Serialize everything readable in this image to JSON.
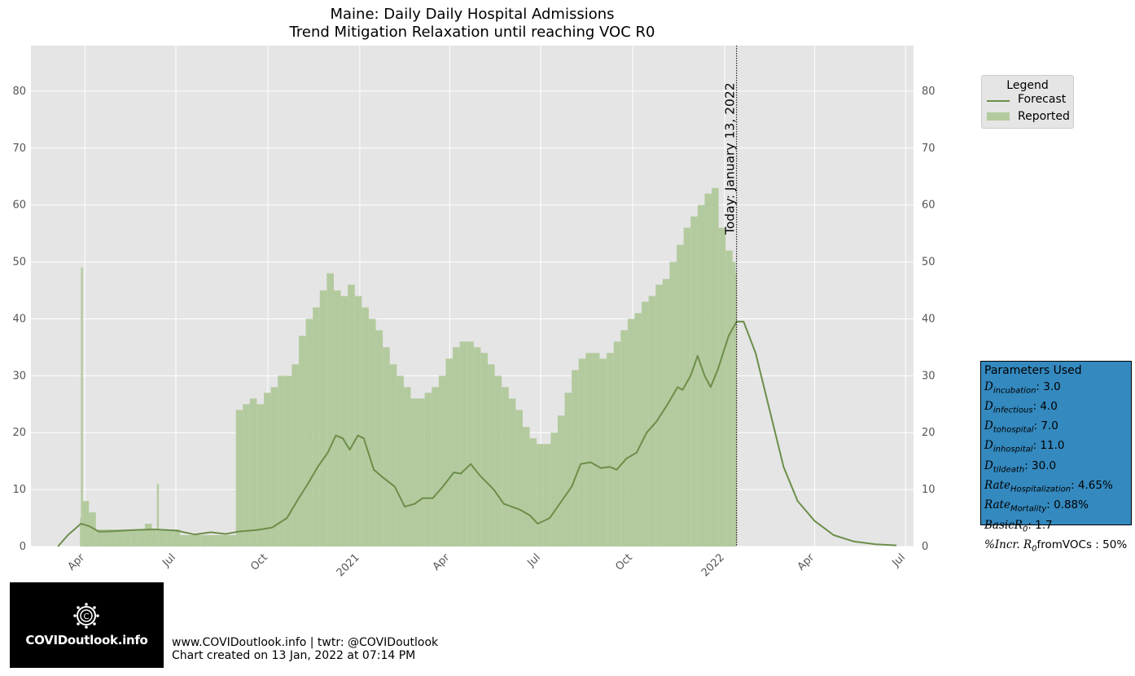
{
  "chart_data": {
    "type": "bar",
    "title": "Maine: Daily Daily Hospital Admissions",
    "subtitle": "Trend Mitigation Relaxation until reaching VOC R0",
    "xlabel": "",
    "ylabel": "",
    "ylim": [
      0,
      88
    ],
    "yticks": [
      0,
      10,
      20,
      30,
      40,
      50,
      60,
      70,
      80
    ],
    "grid": true,
    "legend_position": "outside-right",
    "x_ticks": [
      {
        "label": "Apr",
        "date": "2020-04-01"
      },
      {
        "label": "Jul",
        "date": "2020-07-01"
      },
      {
        "label": "Oct",
        "date": "2020-10-01"
      },
      {
        "label": "2021",
        "date": "2021-01-01"
      },
      {
        "label": "Apr",
        "date": "2021-04-01"
      },
      {
        "label": "Jul",
        "date": "2021-07-01"
      },
      {
        "label": "Oct",
        "date": "2021-10-01"
      },
      {
        "label": "2022",
        "date": "2022-01-01"
      },
      {
        "label": "Apr",
        "date": "2022-04-01"
      },
      {
        "label": "Jul",
        "date": "2022-07-01"
      }
    ],
    "xlim": [
      "2020-02-07",
      "2022-07-09"
    ],
    "today": {
      "date": "2022-01-13",
      "label": "Today: January 13, 2022"
    },
    "series": [
      {
        "name": "Reported",
        "kind": "bar",
        "color": "#b3ca9e",
        "note": "Daily reported admissions, approximate weekly-level reading",
        "points": [
          [
            "2020-03-27",
            5
          ],
          [
            "2020-03-28",
            49
          ],
          [
            "2020-03-30",
            8
          ],
          [
            "2020-04-05",
            6
          ],
          [
            "2020-04-12",
            3
          ],
          [
            "2020-04-19",
            3
          ],
          [
            "2020-04-26",
            3
          ],
          [
            "2020-05-03",
            3
          ],
          [
            "2020-05-10",
            3
          ],
          [
            "2020-05-17",
            3
          ],
          [
            "2020-05-24",
            3
          ],
          [
            "2020-05-31",
            4
          ],
          [
            "2020-06-07",
            3
          ],
          [
            "2020-06-12",
            11
          ],
          [
            "2020-06-14",
            3
          ],
          [
            "2020-06-21",
            3
          ],
          [
            "2020-06-28",
            3
          ],
          [
            "2020-07-05",
            2
          ],
          [
            "2020-07-12",
            2
          ],
          [
            "2020-07-19",
            2
          ],
          [
            "2020-07-26",
            2
          ],
          [
            "2020-08-02",
            2
          ],
          [
            "2020-08-09",
            2
          ],
          [
            "2020-08-16",
            2
          ],
          [
            "2020-08-23",
            2
          ],
          [
            "2020-08-30",
            24
          ],
          [
            "2020-09-06",
            25
          ],
          [
            "2020-09-13",
            26
          ],
          [
            "2020-09-20",
            25
          ],
          [
            "2020-09-27",
            27
          ],
          [
            "2020-10-04",
            28
          ],
          [
            "2020-10-11",
            30
          ],
          [
            "2020-10-18",
            30
          ],
          [
            "2020-10-25",
            32
          ],
          [
            "2020-11-01",
            37
          ],
          [
            "2020-11-08",
            40
          ],
          [
            "2020-11-15",
            42
          ],
          [
            "2020-11-22",
            45
          ],
          [
            "2020-11-29",
            48
          ],
          [
            "2020-12-06",
            45
          ],
          [
            "2020-12-13",
            44
          ],
          [
            "2020-12-20",
            46
          ],
          [
            "2020-12-27",
            44
          ],
          [
            "2021-01-03",
            42
          ],
          [
            "2021-01-10",
            40
          ],
          [
            "2021-01-17",
            38
          ],
          [
            "2021-01-24",
            35
          ],
          [
            "2021-01-31",
            32
          ],
          [
            "2021-02-07",
            30
          ],
          [
            "2021-02-14",
            28
          ],
          [
            "2021-02-21",
            26
          ],
          [
            "2021-02-28",
            26
          ],
          [
            "2021-03-07",
            27
          ],
          [
            "2021-03-14",
            28
          ],
          [
            "2021-03-21",
            30
          ],
          [
            "2021-03-28",
            33
          ],
          [
            "2021-04-04",
            35
          ],
          [
            "2021-04-11",
            36
          ],
          [
            "2021-04-18",
            36
          ],
          [
            "2021-04-25",
            35
          ],
          [
            "2021-05-02",
            34
          ],
          [
            "2021-05-09",
            32
          ],
          [
            "2021-05-16",
            30
          ],
          [
            "2021-05-23",
            28
          ],
          [
            "2021-05-30",
            26
          ],
          [
            "2021-06-06",
            24
          ],
          [
            "2021-06-13",
            21
          ],
          [
            "2021-06-20",
            19
          ],
          [
            "2021-06-27",
            18
          ],
          [
            "2021-07-04",
            18
          ],
          [
            "2021-07-11",
            20
          ],
          [
            "2021-07-18",
            23
          ],
          [
            "2021-07-25",
            27
          ],
          [
            "2021-08-01",
            31
          ],
          [
            "2021-08-08",
            33
          ],
          [
            "2021-08-15",
            34
          ],
          [
            "2021-08-22",
            34
          ],
          [
            "2021-08-29",
            33
          ],
          [
            "2021-09-05",
            34
          ],
          [
            "2021-09-12",
            36
          ],
          [
            "2021-09-19",
            38
          ],
          [
            "2021-09-26",
            40
          ],
          [
            "2021-10-03",
            41
          ],
          [
            "2021-10-10",
            43
          ],
          [
            "2021-10-17",
            44
          ],
          [
            "2021-10-24",
            46
          ],
          [
            "2021-10-31",
            47
          ],
          [
            "2021-11-07",
            50
          ],
          [
            "2021-11-14",
            53
          ],
          [
            "2021-11-21",
            56
          ],
          [
            "2021-11-28",
            58
          ],
          [
            "2021-12-05",
            60
          ],
          [
            "2021-12-12",
            62
          ],
          [
            "2021-12-19",
            63
          ],
          [
            "2021-12-26",
            56
          ],
          [
            "2022-01-02",
            52
          ],
          [
            "2022-01-09",
            50
          ],
          [
            "2022-01-12",
            48
          ]
        ]
      },
      {
        "name": "Forecast",
        "kind": "line",
        "color": "#6c8e4a",
        "points": [
          [
            "2020-03-05",
            0
          ],
          [
            "2020-03-15",
            2
          ],
          [
            "2020-03-28",
            4
          ],
          [
            "2020-04-05",
            3.6
          ],
          [
            "2020-04-15",
            2.6
          ],
          [
            "2020-05-01",
            2.7
          ],
          [
            "2020-05-20",
            2.9
          ],
          [
            "2020-06-10",
            3.0
          ],
          [
            "2020-07-01",
            2.8
          ],
          [
            "2020-07-20",
            2.1
          ],
          [
            "2020-08-05",
            2.5
          ],
          [
            "2020-08-20",
            2.2
          ],
          [
            "2020-09-01",
            2.6
          ],
          [
            "2020-09-20",
            2.9
          ],
          [
            "2020-10-05",
            3.3
          ],
          [
            "2020-10-20",
            5.0
          ],
          [
            "2020-11-01",
            8.5
          ],
          [
            "2020-11-10",
            11.0
          ],
          [
            "2020-11-20",
            14.0
          ],
          [
            "2020-11-30",
            16.5
          ],
          [
            "2020-12-08",
            19.5
          ],
          [
            "2020-12-15",
            19.0
          ],
          [
            "2020-12-22",
            17.0
          ],
          [
            "2020-12-30",
            19.5
          ],
          [
            "2021-01-05",
            19.0
          ],
          [
            "2021-01-15",
            13.5
          ],
          [
            "2021-01-25",
            12.0
          ],
          [
            "2021-02-05",
            10.5
          ],
          [
            "2021-02-15",
            7.0
          ],
          [
            "2021-02-25",
            7.5
          ],
          [
            "2021-03-05",
            8.5
          ],
          [
            "2021-03-15",
            8.5
          ],
          [
            "2021-03-25",
            10.5
          ],
          [
            "2021-04-05",
            13.0
          ],
          [
            "2021-04-12",
            12.8
          ],
          [
            "2021-04-22",
            14.5
          ],
          [
            "2021-05-01",
            12.5
          ],
          [
            "2021-05-15",
            10.0
          ],
          [
            "2021-05-25",
            7.5
          ],
          [
            "2021-06-10",
            6.5
          ],
          [
            "2021-06-20",
            5.5
          ],
          [
            "2021-06-28",
            4.0
          ],
          [
            "2021-07-10",
            5.0
          ],
          [
            "2021-07-20",
            7.5
          ],
          [
            "2021-08-01",
            10.5
          ],
          [
            "2021-08-10",
            14.5
          ],
          [
            "2021-08-20",
            14.8
          ],
          [
            "2021-08-30",
            13.8
          ],
          [
            "2021-09-08",
            14.0
          ],
          [
            "2021-09-15",
            13.5
          ],
          [
            "2021-09-25",
            15.5
          ],
          [
            "2021-10-05",
            16.5
          ],
          [
            "2021-10-15",
            20.0
          ],
          [
            "2021-10-25",
            22.0
          ],
          [
            "2021-11-05",
            25.0
          ],
          [
            "2021-11-15",
            28.0
          ],
          [
            "2021-11-20",
            27.5
          ],
          [
            "2021-11-28",
            30.0
          ],
          [
            "2021-12-05",
            33.5
          ],
          [
            "2021-12-12",
            30.0
          ],
          [
            "2021-12-18",
            28.0
          ],
          [
            "2021-12-25",
            31.0
          ],
          [
            "2022-01-05",
            37.0
          ],
          [
            "2022-01-13",
            39.5
          ],
          [
            "2022-01-20",
            39.5
          ],
          [
            "2022-02-01",
            34.0
          ],
          [
            "2022-02-15",
            24.0
          ],
          [
            "2022-03-01",
            14.0
          ],
          [
            "2022-03-15",
            8.0
          ],
          [
            "2022-04-01",
            4.5
          ],
          [
            "2022-04-20",
            2.0
          ],
          [
            "2022-05-10",
            0.9
          ],
          [
            "2022-06-01",
            0.4
          ],
          [
            "2022-06-22",
            0.2
          ]
        ]
      }
    ]
  },
  "legend": {
    "title": "Legend",
    "items": [
      {
        "label": "Forecast",
        "color": "#6c8e4a"
      },
      {
        "label": "Reported",
        "color": "#b3ca9e"
      }
    ]
  },
  "params": {
    "title": "Parameters Used",
    "rows": [
      {
        "var": "D",
        "sub": "incubation",
        "value": ": 3.0"
      },
      {
        "var": "D",
        "sub": "infectious",
        "value": ": 4.0"
      },
      {
        "var": "D",
        "sub": "tohospital",
        "value": ": 7.0"
      },
      {
        "var": "D",
        "sub": "inhospital",
        "value": ": 11.0"
      },
      {
        "var": "D",
        "sub": "tildeath",
        "value": ": 30.0"
      },
      {
        "var": "Rate",
        "sub": "Hospitalization",
        "value": ": 4.65%"
      },
      {
        "var": "Rate",
        "sub": "Mortality",
        "value": ": 0.88%"
      },
      {
        "var": "BasicR",
        "sub": "0",
        "value": ": 1.7"
      },
      {
        "var": "%Incr. R",
        "sub": "0",
        "value": "fromVOCs : 50%"
      }
    ],
    "background": "#3489bf"
  },
  "logo": {
    "text": "COVIDoutlook.info"
  },
  "footer": {
    "line1": "www.COVIDoutlook.info | twtr: @COVIDoutlook",
    "line2": "Chart created on 13 Jan, 2022 at 07:14 PM"
  }
}
